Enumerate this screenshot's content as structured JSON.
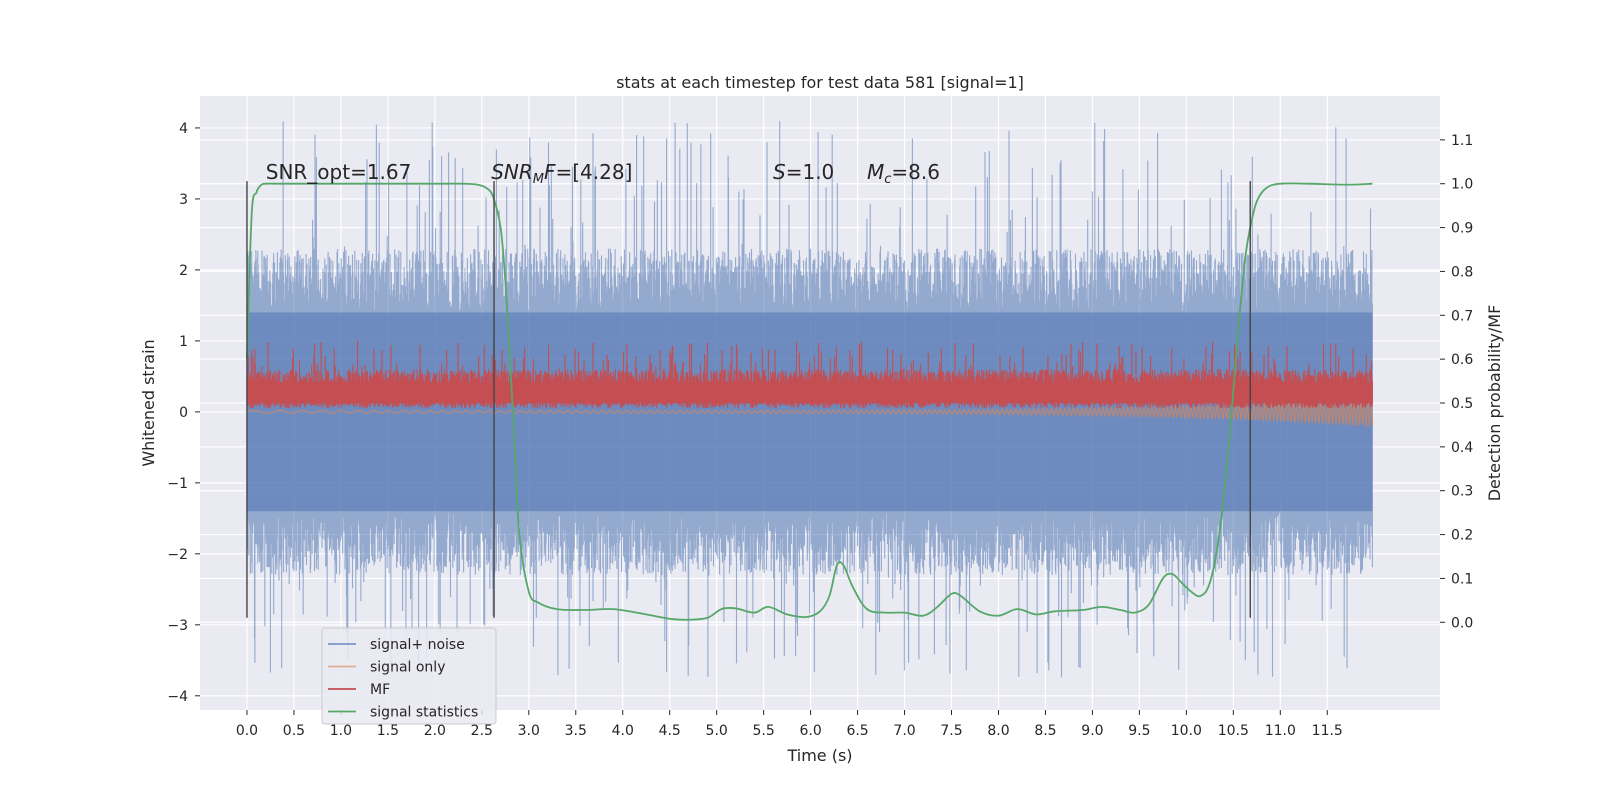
{
  "chart_data": {
    "type": "line",
    "title": "stats at each timestep for test data 581 [signal=1]",
    "xlabel": "Time (s)",
    "ylabel": "Whitened strain",
    "ylabel_right": "Detection probability/MF",
    "xlim": [
      -0.5,
      12.7
    ],
    "ylim": [
      -4.2,
      4.45
    ],
    "ylim_right": [
      -0.2,
      1.2
    ],
    "x_ticks": [
      "0.0",
      "0.5",
      "1.0",
      "1.5",
      "2.0",
      "2.5",
      "3.0",
      "3.5",
      "4.0",
      "4.5",
      "5.0",
      "5.5",
      "6.0",
      "6.5",
      "7.0",
      "7.5",
      "8.0",
      "8.5",
      "9.0",
      "9.5",
      "10.0",
      "10.5",
      "11.0",
      "11.5"
    ],
    "y_ticks_left": [
      "4",
      "3",
      "2",
      "1",
      "0",
      "−1",
      "−2",
      "−3",
      "−4"
    ],
    "y_ticks_right": [
      "1.1",
      "1.0",
      "0.9",
      "0.8",
      "0.7",
      "0.6",
      "0.5",
      "0.4",
      "0.3",
      "0.2",
      "0.1",
      "0.0"
    ],
    "grid": true,
    "legend_position": "lower-left",
    "annotations": [
      {
        "html": "SNR_opt=1.67",
        "x": 0.2,
        "y": 3.28
      },
      {
        "html": "<tspan font-style='italic'>SNR</tspan><tspan font-style='italic' font-size='13' dy='4'>M</tspan><tspan font-style='italic' dy='-4'>F</tspan>=[4.28]",
        "x": 2.6,
        "y": 3.28
      },
      {
        "html": "<tspan font-style='italic'>S</tspan>=1.0",
        "x": 5.6,
        "y": 3.28
      },
      {
        "html": "<tspan font-style='italic'>M</tspan><tspan font-style='italic' font-size='13' dy='4'>c</tspan><tspan dy='-4'>=8.6</tspan>",
        "x": 6.6,
        "y": 3.28
      }
    ],
    "vertical_markers": [
      {
        "x": 0.0,
        "y_range": [
          -2.9,
          3.25
        ]
      },
      {
        "x": 2.63,
        "y_range": [
          -2.9,
          3.25
        ]
      },
      {
        "x": 10.68,
        "y_range": [
          -2.9,
          3.25
        ]
      }
    ],
    "series": [
      {
        "name": "signal+ noise",
        "color": "#4c72b0",
        "kind": "noise-band",
        "x_range": [
          0.0,
          11.98
        ],
        "y_typical": [
          -1.4,
          1.4
        ],
        "y_extreme": [
          -3.75,
          4.1
        ],
        "samples": 2400
      },
      {
        "name": "signal only",
        "color": "#dd8452",
        "kind": "chirp",
        "x_range": [
          0.0,
          11.98
        ],
        "envelope_end": 0.2
      },
      {
        "name": "MF",
        "color": "#c44e52",
        "kind": "mf-band",
        "x_range": [
          0.0,
          11.98
        ],
        "base": 0.3,
        "y_typical": [
          0.05,
          0.55
        ],
        "y_peak": 1.0,
        "samples": 2400
      },
      {
        "name": "signal statistics",
        "color": "#55a868",
        "kind": "line",
        "axis": "right",
        "x": [
          0.0,
          0.05,
          0.1,
          0.15,
          0.2,
          0.3,
          0.5,
          1.0,
          1.5,
          2.0,
          2.3,
          2.45,
          2.55,
          2.62,
          2.7,
          2.75,
          2.8,
          2.85,
          2.9,
          3.0,
          3.1,
          3.3,
          3.6,
          3.9,
          4.2,
          4.5,
          4.7,
          4.9,
          5.05,
          5.2,
          5.4,
          5.55,
          5.75,
          5.95,
          6.1,
          6.2,
          6.28,
          6.35,
          6.45,
          6.6,
          6.8,
          7.0,
          7.2,
          7.35,
          7.5,
          7.6,
          7.8,
          8.0,
          8.2,
          8.4,
          8.6,
          8.9,
          9.1,
          9.3,
          9.45,
          9.6,
          9.75,
          9.85,
          9.95,
          10.05,
          10.15,
          10.25,
          10.35,
          10.45,
          10.55,
          10.62,
          10.68,
          10.75,
          10.85,
          11.0,
          11.3,
          11.7,
          11.98
        ],
        "y": [
          0.6,
          0.93,
          0.98,
          0.997,
          1.0,
          1.0,
          1.0,
          1.0,
          1.0,
          1.0,
          1.0,
          0.998,
          0.99,
          0.97,
          0.9,
          0.78,
          0.6,
          0.4,
          0.2,
          0.07,
          0.045,
          0.03,
          0.028,
          0.03,
          0.02,
          0.008,
          0.006,
          0.01,
          0.03,
          0.032,
          0.022,
          0.035,
          0.018,
          0.012,
          0.025,
          0.06,
          0.13,
          0.13,
          0.08,
          0.03,
          0.022,
          0.022,
          0.015,
          0.035,
          0.065,
          0.06,
          0.025,
          0.015,
          0.03,
          0.018,
          0.025,
          0.028,
          0.035,
          0.028,
          0.022,
          0.04,
          0.1,
          0.11,
          0.09,
          0.07,
          0.06,
          0.09,
          0.2,
          0.4,
          0.66,
          0.82,
          0.9,
          0.96,
          0.99,
          1.0,
          1.0,
          0.998,
          1.0
        ]
      }
    ]
  }
}
